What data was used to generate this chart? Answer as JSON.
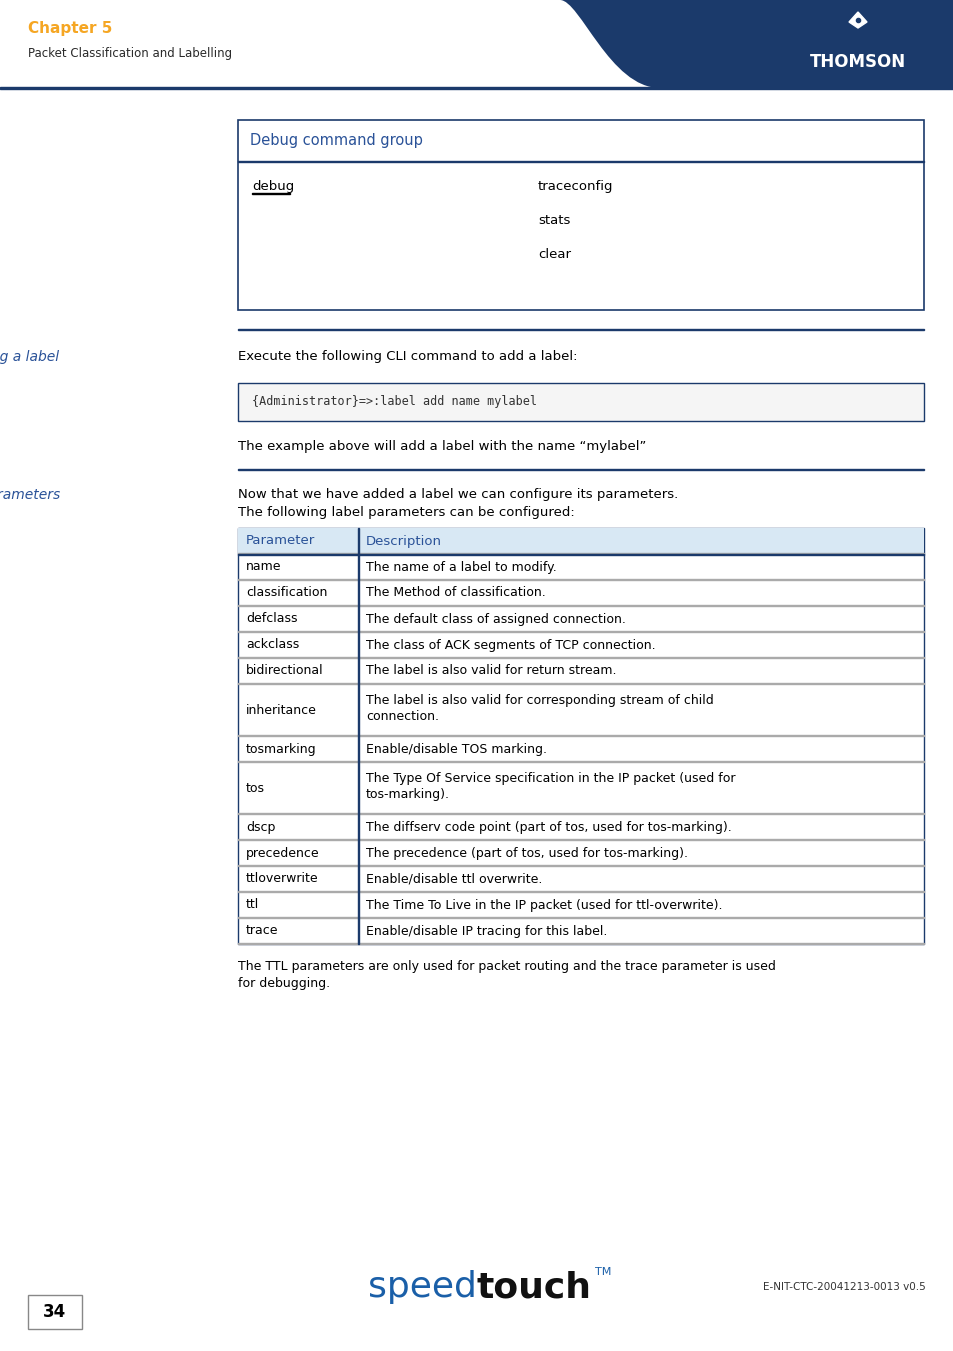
{
  "bg_color": "#ffffff",
  "header_bg": "#1b3a6b",
  "chapter_color": "#f5a623",
  "blue_heading_color": "#2a5298",
  "table_border_color": "#1b3a6b",
  "divider_color": "#1b3a6b",
  "row_line_color": "#aaaaaa",
  "chapter_title": "Chapter 5",
  "chapter_subtitle": "Packet Classification and Labelling",
  "page_number": "34",
  "footer_doc": "E-NIT-CTC-20041213-0013 v0.5",
  "debug_table_title": "Debug command group",
  "debug_col1": "debug",
  "debug_col2": [
    "traceconfig",
    "stats",
    "clear"
  ],
  "section1_title": "Adding a label",
  "section1_text": "Execute the following CLI command to add a label:",
  "section1_code": "{Administrator}=>:label add name mylabel",
  "section1_note": "The example above will add a label with the name “mylabel”",
  "section2_title": "Label parameters",
  "section2_text1": "Now that we have added a label we can configure its parameters.",
  "section2_text2": "The following label parameters can be configured:",
  "param_headers": [
    "Parameter",
    "Description"
  ],
  "param_rows": [
    [
      "name",
      "The name of a label to modify."
    ],
    [
      "classification",
      "The Method of classification."
    ],
    [
      "defclass",
      "The default class of assigned connection."
    ],
    [
      "ackclass",
      "The class of ACK segments of TCP connection."
    ],
    [
      "bidirectional",
      "The label is also valid for return stream."
    ],
    [
      "inheritance",
      "The label is also valid for corresponding stream of child\nconnection."
    ],
    [
      "tosmarking",
      "Enable/disable TOS marking."
    ],
    [
      "tos",
      "The Type Of Service specification in the IP packet (used for\ntos-marking)."
    ],
    [
      "dscp",
      "The diffserv code point (part of tos, used for tos-marking)."
    ],
    [
      "precedence",
      "The precedence (part of tos, used for tos-marking)."
    ],
    [
      "ttloverwrite",
      "Enable/disable ttl overwrite."
    ],
    [
      "ttl",
      "The Time To Live in the IP packet (used for ttl-overwrite)."
    ],
    [
      "trace",
      "Enable/disable IP tracing for this label."
    ]
  ],
  "footer_note1": "The TTL parameters are only used for packet routing and the trace parameter is used",
  "footer_note2": "for debugging."
}
